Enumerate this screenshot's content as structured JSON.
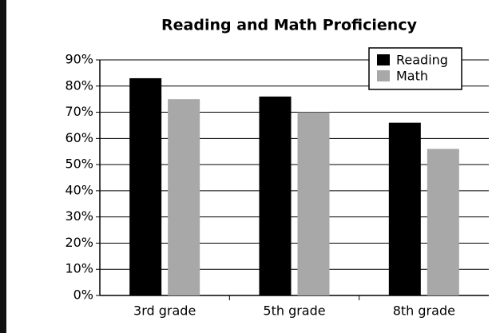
{
  "chart_data": {
    "type": "bar",
    "title": "Reading and Math Proficiency",
    "categories": [
      "3rd grade",
      "5th grade",
      "8th grade"
    ],
    "series": [
      {
        "name": "Reading",
        "color": "#000000",
        "values": [
          83,
          76,
          66
        ]
      },
      {
        "name": "Math",
        "color": "#a8a8a8",
        "values": [
          75,
          70,
          56
        ]
      }
    ],
    "ylim": [
      0,
      90
    ],
    "yticks": [
      {
        "value": 0,
        "label": "0%"
      },
      {
        "value": 10,
        "label": "10%"
      },
      {
        "value": 20,
        "label": "20%"
      },
      {
        "value": 30,
        "label": "30%"
      },
      {
        "value": 40,
        "label": "40%"
      },
      {
        "value": 50,
        "label": "50%"
      },
      {
        "value": 60,
        "label": "60%"
      },
      {
        "value": 70,
        "label": "70%"
      },
      {
        "value": 80,
        "label": "80%"
      },
      {
        "value": 90,
        "label": "90%"
      }
    ],
    "grid": true,
    "legend": "top-right"
  }
}
